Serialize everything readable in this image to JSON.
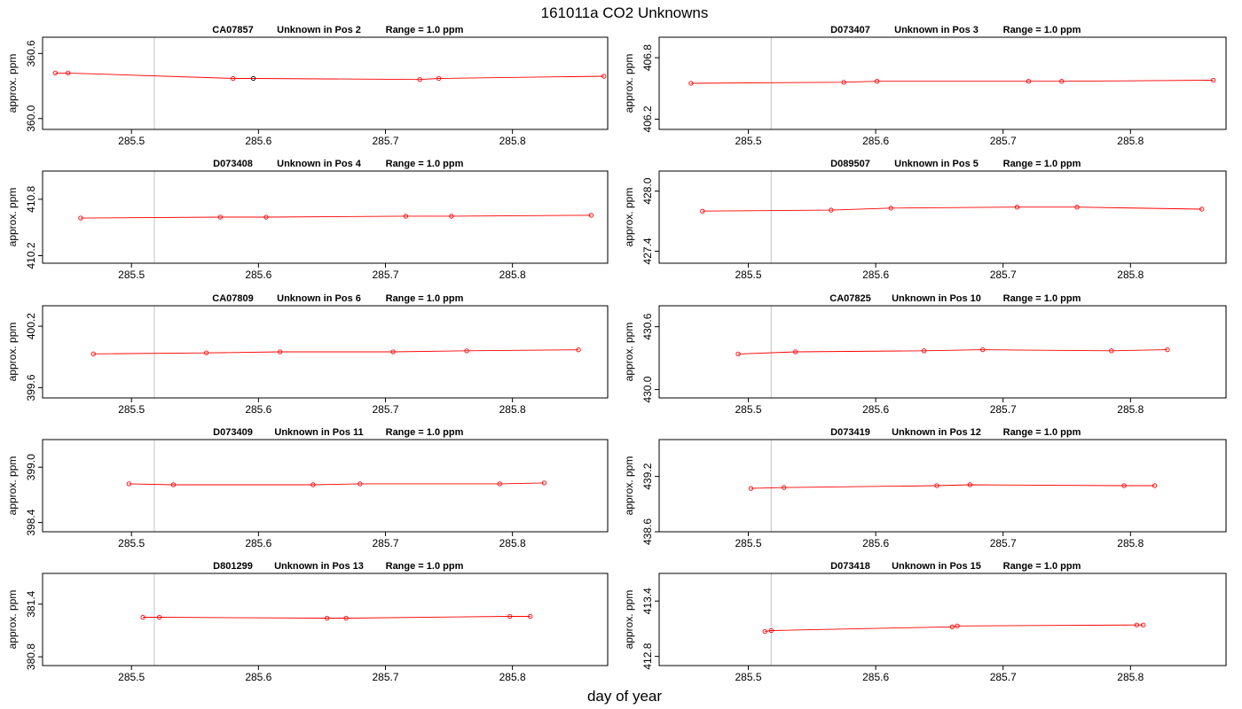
{
  "title": "161011a  CO2 Unknowns",
  "xlabel": "day of year",
  "ylabel": "approx. ppm",
  "colors": {
    "series": "#ff0000",
    "highlight": "#000000",
    "marker_line": "#cccccc",
    "frame": "#000000"
  },
  "chart_data": [
    {
      "type": "line",
      "tank": "CA07857",
      "position": "Unknown in Pos 2",
      "range": "Range = 1.0 ppm",
      "xlim": [
        285.43,
        285.875
      ],
      "ylim": [
        359.9,
        360.75
      ],
      "xticks": [
        "285.5",
        "285.6",
        "285.7",
        "285.8"
      ],
      "yticks": [
        "360.0",
        "360.6"
      ],
      "vlines": [
        285.518,
        285.875
      ],
      "x": [
        285.44,
        285.45,
        285.58,
        285.596,
        285.727,
        285.742,
        285.872
      ],
      "y": [
        360.42,
        360.42,
        360.37,
        360.37,
        360.36,
        360.37,
        360.39
      ],
      "highlight_index": 3
    },
    {
      "type": "line",
      "tank": "D073407",
      "position": "Unknown in Pos 3",
      "range": "Range = 1.0 ppm",
      "xlim": [
        285.43,
        285.875
      ],
      "ylim": [
        406.1,
        407.0
      ],
      "xticks": [
        "285.5",
        "285.6",
        "285.7",
        "285.8"
      ],
      "yticks": [
        "406.2",
        "406.8"
      ],
      "vlines": [
        285.518,
        285.875
      ],
      "x": [
        285.455,
        285.575,
        285.601,
        285.72,
        285.746,
        285.865
      ],
      "y": [
        406.55,
        406.56,
        406.57,
        406.57,
        406.57,
        406.58
      ],
      "highlight_index": null
    },
    {
      "type": "line",
      "tank": "D073408",
      "position": "Unknown in Pos 4",
      "range": "Range = 1.0 ppm",
      "xlim": [
        285.43,
        285.875
      ],
      "ylim": [
        410.12,
        411.1
      ],
      "xticks": [
        "285.5",
        "285.6",
        "285.7",
        "285.8"
      ],
      "yticks": [
        "410.2",
        "410.8"
      ],
      "vlines": [
        285.518,
        285.875
      ],
      "x": [
        285.46,
        285.57,
        285.606,
        285.716,
        285.752,
        285.862
      ],
      "y": [
        410.6,
        410.61,
        410.61,
        410.62,
        410.62,
        410.63
      ],
      "highlight_index": null
    },
    {
      "type": "line",
      "tank": "D089507",
      "position": "Unknown in Pos 5",
      "range": "Range = 1.0 ppm",
      "xlim": [
        285.43,
        285.875
      ],
      "ylim": [
        427.28,
        428.2
      ],
      "xticks": [
        "285.5",
        "285.6",
        "285.7",
        "285.8"
      ],
      "yticks": [
        "427.4",
        "428.0"
      ],
      "vlines": [
        285.518,
        285.875
      ],
      "x": [
        285.464,
        285.565,
        285.612,
        285.711,
        285.758,
        285.856
      ],
      "y": [
        427.8,
        427.81,
        427.83,
        427.84,
        427.84,
        427.82
      ],
      "highlight_index": null
    },
    {
      "type": "line",
      "tank": "CA07809",
      "position": "Unknown in Pos 6",
      "range": "Range = 1.0 ppm",
      "xlim": [
        285.43,
        285.875
      ],
      "ylim": [
        399.5,
        400.4
      ],
      "xticks": [
        "285.5",
        "285.6",
        "285.7",
        "285.8"
      ],
      "yticks": [
        "399.6",
        "400.2"
      ],
      "vlines": [
        285.518,
        285.875
      ],
      "x": [
        285.47,
        285.559,
        285.617,
        285.706,
        285.764,
        285.852
      ],
      "y": [
        399.93,
        399.94,
        399.95,
        399.95,
        399.96,
        399.97
      ],
      "highlight_index": null
    },
    {
      "type": "line",
      "tank": "CA07825",
      "position": "Unknown in Pos 10",
      "range": "Range = 1.0 ppm",
      "xlim": [
        285.43,
        285.875
      ],
      "ylim": [
        429.92,
        430.8
      ],
      "xticks": [
        "285.5",
        "285.6",
        "285.7",
        "285.8"
      ],
      "yticks": [
        "430.0",
        "430.6"
      ],
      "vlines": [
        285.518,
        285.875
      ],
      "x": [
        285.492,
        285.537,
        285.638,
        285.684,
        285.785,
        285.829
      ],
      "y": [
        430.34,
        430.36,
        430.37,
        430.38,
        430.37,
        430.38
      ],
      "highlight_index": null
    },
    {
      "type": "line",
      "tank": "D073409",
      "position": "Unknown in Pos 11",
      "range": "Range = 1.0 ppm",
      "xlim": [
        285.43,
        285.875
      ],
      "ylim": [
        398.3,
        399.3
      ],
      "xticks": [
        "285.5",
        "285.6",
        "285.7",
        "285.8"
      ],
      "yticks": [
        "398.4",
        "399.0"
      ],
      "vlines": [
        285.518,
        285.875
      ],
      "x": [
        285.498,
        285.533,
        285.643,
        285.68,
        285.79,
        285.825
      ],
      "y": [
        398.82,
        398.81,
        398.81,
        398.82,
        398.82,
        398.83
      ],
      "highlight_index": null
    },
    {
      "type": "line",
      "tank": "D073419",
      "position": "Unknown in Pos 12",
      "range": "Range = 1.0 ppm",
      "xlim": [
        285.43,
        285.875
      ],
      "ylim": [
        438.6,
        439.6
      ],
      "xticks": [
        "285.5",
        "285.6",
        "285.7",
        "285.8"
      ],
      "yticks": [
        "438.6",
        "439.2"
      ],
      "vlines": [
        285.518,
        285.875
      ],
      "x": [
        285.502,
        285.528,
        285.648,
        285.674,
        285.795,
        285.819
      ],
      "y": [
        439.07,
        439.08,
        439.1,
        439.11,
        439.1,
        439.1
      ],
      "highlight_index": null
    },
    {
      "type": "line",
      "tank": "D801299",
      "position": "Unknown in Pos 13",
      "range": "Range = 1.0 ppm",
      "xlim": [
        285.43,
        285.875
      ],
      "ylim": [
        380.7,
        381.75
      ],
      "xticks": [
        "285.5",
        "285.6",
        "285.7",
        "285.8"
      ],
      "yticks": [
        "380.8",
        "381.4"
      ],
      "vlines": [
        285.518,
        285.875
      ],
      "x": [
        285.509,
        285.522,
        285.654,
        285.669,
        285.798,
        285.814
      ],
      "y": [
        381.25,
        381.25,
        381.24,
        381.24,
        381.26,
        381.26
      ],
      "highlight_index": null
    },
    {
      "type": "line",
      "tank": "D073418",
      "position": "Unknown in Pos 15",
      "range": "Range = 1.0 ppm",
      "xlim": [
        285.43,
        285.875
      ],
      "ylim": [
        412.7,
        413.7
      ],
      "xticks": [
        "285.5",
        "285.6",
        "285.7",
        "285.8"
      ],
      "yticks": [
        "412.8",
        "413.4"
      ],
      "vlines": [
        285.518,
        285.875
      ],
      "x": [
        285.513,
        285.518,
        285.66,
        285.664,
        285.805,
        285.81
      ],
      "y": [
        413.07,
        413.08,
        413.12,
        413.13,
        413.14,
        413.14
      ],
      "highlight_index": null
    }
  ]
}
